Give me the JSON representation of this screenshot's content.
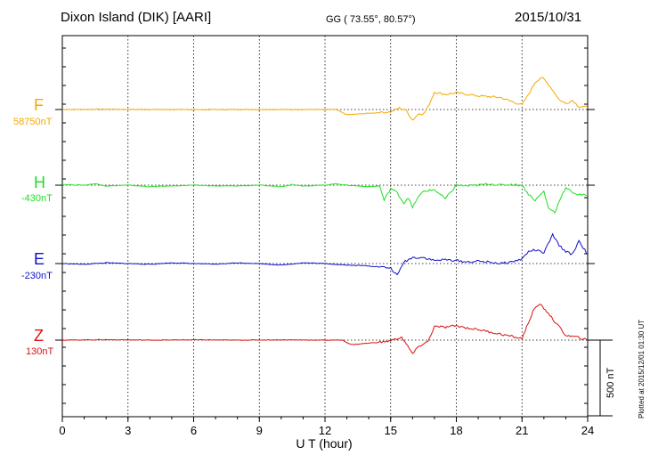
{
  "header": {
    "station": "Dixon Island (DIK)  [AARI]",
    "coords": "GG ( 73.55°,  80.57°)",
    "date": "2015/10/31"
  },
  "footnote": "Plotted at 2015/12/01 01:30 UT",
  "scale_label": "500 nT",
  "colors": {
    "F": "#f5a800",
    "H": "#22dd22",
    "E": "#1010cc",
    "Z": "#dd1111"
  },
  "chart_data": {
    "type": "line",
    "xlabel": "U T (hour)",
    "xlim": [
      0,
      24
    ],
    "xticks": [
      0,
      3,
      6,
      9,
      12,
      15,
      18,
      21,
      24
    ],
    "scale_nT": 500,
    "channels": [
      {
        "name": "F",
        "baseline_label": "58750nT",
        "baseline_nT": 58750,
        "points": [
          [
            0,
            0
          ],
          [
            2,
            2
          ],
          [
            4,
            0
          ],
          [
            6,
            -1
          ],
          [
            8,
            0
          ],
          [
            10,
            0
          ],
          [
            12.5,
            0
          ],
          [
            13,
            -35
          ],
          [
            14,
            -25
          ],
          [
            15,
            -15
          ],
          [
            15.4,
            10
          ],
          [
            15.7,
            -5
          ],
          [
            16,
            -70
          ],
          [
            16.3,
            -25
          ],
          [
            16.5,
            -30
          ],
          [
            16.7,
            15
          ],
          [
            17,
            115
          ],
          [
            17.5,
            100
          ],
          [
            18,
            110
          ],
          [
            18.5,
            100
          ],
          [
            19,
            90
          ],
          [
            20,
            80
          ],
          [
            21,
            30
          ],
          [
            21.3,
            100
          ],
          [
            21.6,
            180
          ],
          [
            21.9,
            215
          ],
          [
            22.3,
            150
          ],
          [
            22.7,
            65
          ],
          [
            23,
            40
          ],
          [
            23.3,
            60
          ],
          [
            23.6,
            20
          ],
          [
            24,
            15
          ]
        ]
      },
      {
        "name": "H",
        "baseline_label": "-430nT",
        "baseline_nT": -430,
        "points": [
          [
            0,
            5
          ],
          [
            1,
            0
          ],
          [
            1.5,
            10
          ],
          [
            2,
            -5
          ],
          [
            3,
            0
          ],
          [
            4,
            -10
          ],
          [
            5,
            -5
          ],
          [
            6,
            0
          ],
          [
            7,
            -5
          ],
          [
            8,
            -5
          ],
          [
            9,
            0
          ],
          [
            10,
            -10
          ],
          [
            10.5,
            5
          ],
          [
            11,
            -5
          ],
          [
            12,
            0
          ],
          [
            12.5,
            10
          ],
          [
            13,
            0
          ],
          [
            14,
            -10
          ],
          [
            14.5,
            -5
          ],
          [
            14.7,
            -100
          ],
          [
            15,
            -20
          ],
          [
            15.3,
            -50
          ],
          [
            15.6,
            -120
          ],
          [
            15.8,
            -80
          ],
          [
            16,
            -150
          ],
          [
            16.2,
            -90
          ],
          [
            16.5,
            -40
          ],
          [
            17,
            -30
          ],
          [
            17.5,
            -90
          ],
          [
            18,
            0
          ],
          [
            18.5,
            -5
          ],
          [
            19,
            0
          ],
          [
            19.5,
            10
          ],
          [
            20,
            0
          ],
          [
            20.5,
            5
          ],
          [
            21,
            0
          ],
          [
            21.3,
            -60
          ],
          [
            21.6,
            -100
          ],
          [
            22,
            -40
          ],
          [
            22.2,
            -150
          ],
          [
            22.5,
            -180
          ],
          [
            22.8,
            -70
          ],
          [
            23,
            -20
          ],
          [
            23.5,
            -60
          ],
          [
            24,
            -70
          ]
        ]
      },
      {
        "name": "E",
        "baseline_label": "-230nT",
        "baseline_nT": -230,
        "points": [
          [
            0,
            0
          ],
          [
            1,
            -5
          ],
          [
            2,
            5
          ],
          [
            3,
            0
          ],
          [
            4,
            -5
          ],
          [
            5,
            5
          ],
          [
            6,
            0
          ],
          [
            7,
            -5
          ],
          [
            8,
            5
          ],
          [
            9,
            0
          ],
          [
            10,
            -10
          ],
          [
            11,
            5
          ],
          [
            12,
            0
          ],
          [
            13,
            -10
          ],
          [
            14,
            -15
          ],
          [
            15,
            -30
          ],
          [
            15.3,
            -80
          ],
          [
            15.6,
            10
          ],
          [
            16,
            40
          ],
          [
            16.5,
            40
          ],
          [
            17,
            20
          ],
          [
            17.5,
            25
          ],
          [
            18,
            20
          ],
          [
            18.5,
            10
          ],
          [
            19,
            15
          ],
          [
            19.5,
            10
          ],
          [
            20,
            0
          ],
          [
            20.5,
            10
          ],
          [
            21,
            30
          ],
          [
            21.3,
            80
          ],
          [
            21.6,
            90
          ],
          [
            22,
            70
          ],
          [
            22.4,
            190
          ],
          [
            22.7,
            120
          ],
          [
            23,
            80
          ],
          [
            23.3,
            60
          ],
          [
            23.6,
            150
          ],
          [
            24,
            60
          ]
        ]
      },
      {
        "name": "Z",
        "baseline_label": "130nT",
        "baseline_nT": 130,
        "points": [
          [
            0,
            0
          ],
          [
            2,
            3
          ],
          [
            4,
            0
          ],
          [
            6,
            2
          ],
          [
            8,
            0
          ],
          [
            10,
            2
          ],
          [
            12,
            0
          ],
          [
            12.8,
            0
          ],
          [
            13.2,
            -30
          ],
          [
            14,
            -20
          ],
          [
            14.8,
            -10
          ],
          [
            15.2,
            5
          ],
          [
            15.5,
            20
          ],
          [
            16,
            -90
          ],
          [
            16.3,
            -40
          ],
          [
            16.7,
            -10
          ],
          [
            17,
            90
          ],
          [
            17.5,
            85
          ],
          [
            18,
            95
          ],
          [
            18.5,
            80
          ],
          [
            19,
            70
          ],
          [
            20,
            40
          ],
          [
            21,
            10
          ],
          [
            21.5,
            190
          ],
          [
            21.8,
            240
          ],
          [
            22.2,
            180
          ],
          [
            22.5,
            120
          ],
          [
            22.8,
            70
          ],
          [
            23,
            30
          ],
          [
            23.5,
            20
          ],
          [
            24,
            0
          ]
        ]
      }
    ]
  }
}
